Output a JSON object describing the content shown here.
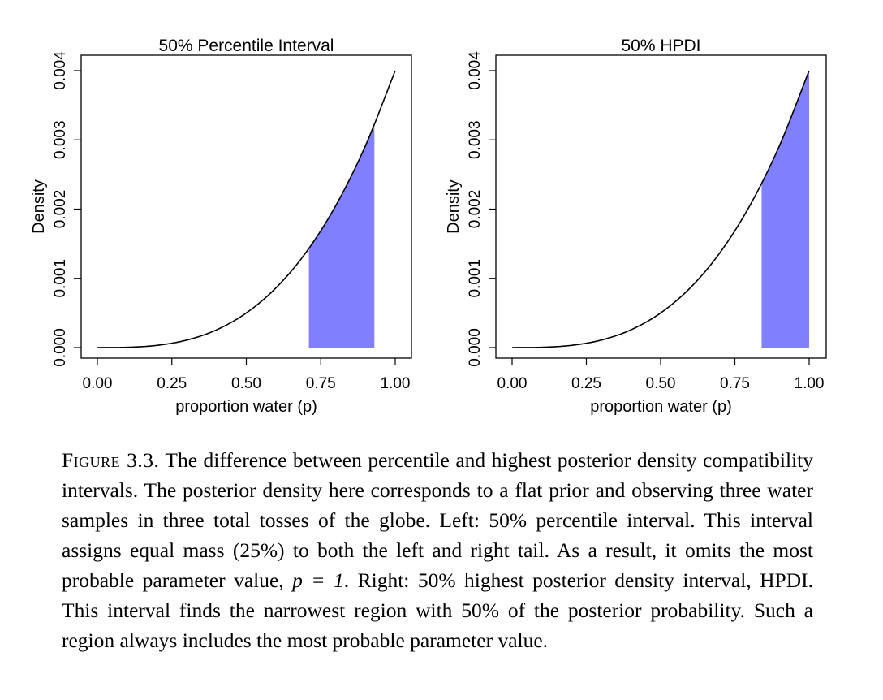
{
  "chart_data": [
    {
      "type": "area",
      "title": "50% Percentile Interval",
      "xlabel": "proportion water (p)",
      "ylabel": "Density",
      "xlim": [
        0,
        1
      ],
      "ylim": [
        0,
        0.004
      ],
      "x_ticks": [
        "0.00",
        "0.25",
        "0.50",
        "0.75",
        "1.00"
      ],
      "y_ticks": [
        "0.000",
        "0.001",
        "0.002",
        "0.003",
        "0.004"
      ],
      "grid": false,
      "curve": {
        "x": [
          0.0,
          0.1,
          0.2,
          0.3,
          0.4,
          0.5,
          0.6,
          0.7,
          0.8,
          0.9,
          1.0
        ],
        "y": [
          0.0,
          4e-06,
          3.2e-05,
          0.000108,
          0.000256,
          0.0005,
          0.000864,
          0.001372,
          0.002048,
          0.002916,
          0.004
        ]
      },
      "shaded_interval": [
        0.71,
        0.93
      ],
      "shade_color": "#8080ff"
    },
    {
      "type": "area",
      "title": "50% HPDI",
      "xlabel": "proportion water (p)",
      "ylabel": "Density",
      "xlim": [
        0,
        1
      ],
      "ylim": [
        0,
        0.004
      ],
      "x_ticks": [
        "0.00",
        "0.25",
        "0.50",
        "0.75",
        "1.00"
      ],
      "y_ticks": [
        "0.000",
        "0.001",
        "0.002",
        "0.003",
        "0.004"
      ],
      "grid": false,
      "curve": {
        "x": [
          0.0,
          0.1,
          0.2,
          0.3,
          0.4,
          0.5,
          0.6,
          0.7,
          0.8,
          0.9,
          1.0
        ],
        "y": [
          0.0,
          4e-06,
          3.2e-05,
          0.000108,
          0.000256,
          0.0005,
          0.000864,
          0.001372,
          0.002048,
          0.002916,
          0.004
        ]
      },
      "shaded_interval": [
        0.84,
        1.0
      ],
      "shade_color": "#8080ff"
    }
  ],
  "caption": {
    "label": "Figure 3.3.",
    "text_1": " The difference between percentile and highest posterior density compatibility intervals. The posterior density here corresponds to a flat prior and observing three water samples in three total tosses of the globe. Left: 50% percentile interval. This interval assigns equal mass (25%) to both the left and right tail. As a result, it omits the most probable parameter value, ",
    "equation": "p = 1",
    "text_2": ". Right: 50% highest posterior density interval, HPDI. This interval finds the narrowest region with 50% of the posterior probability. Such a region always includes the most probable parameter value."
  }
}
